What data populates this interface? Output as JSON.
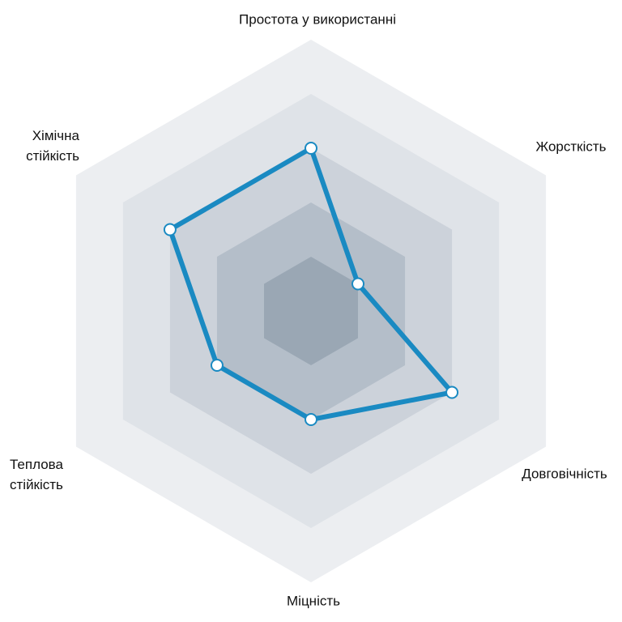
{
  "chart_data": {
    "type": "radar",
    "categories": [
      "Простота у використанні",
      "Жорсткість",
      "Довговічність",
      "Міцність",
      "Теплова\nстійкість",
      "Хімічна\nстійкість"
    ],
    "values": [
      3,
      1,
      3,
      2,
      2,
      3
    ],
    "color": "#1a8ac2",
    "rlim": [
      0,
      5
    ],
    "rticks": [
      1,
      2,
      3,
      4,
      5
    ],
    "ring_colors": [
      "#9aa7b4",
      "#b4bec9",
      "#ccd2da",
      "#dfe3e8",
      "#eceef1"
    ]
  }
}
